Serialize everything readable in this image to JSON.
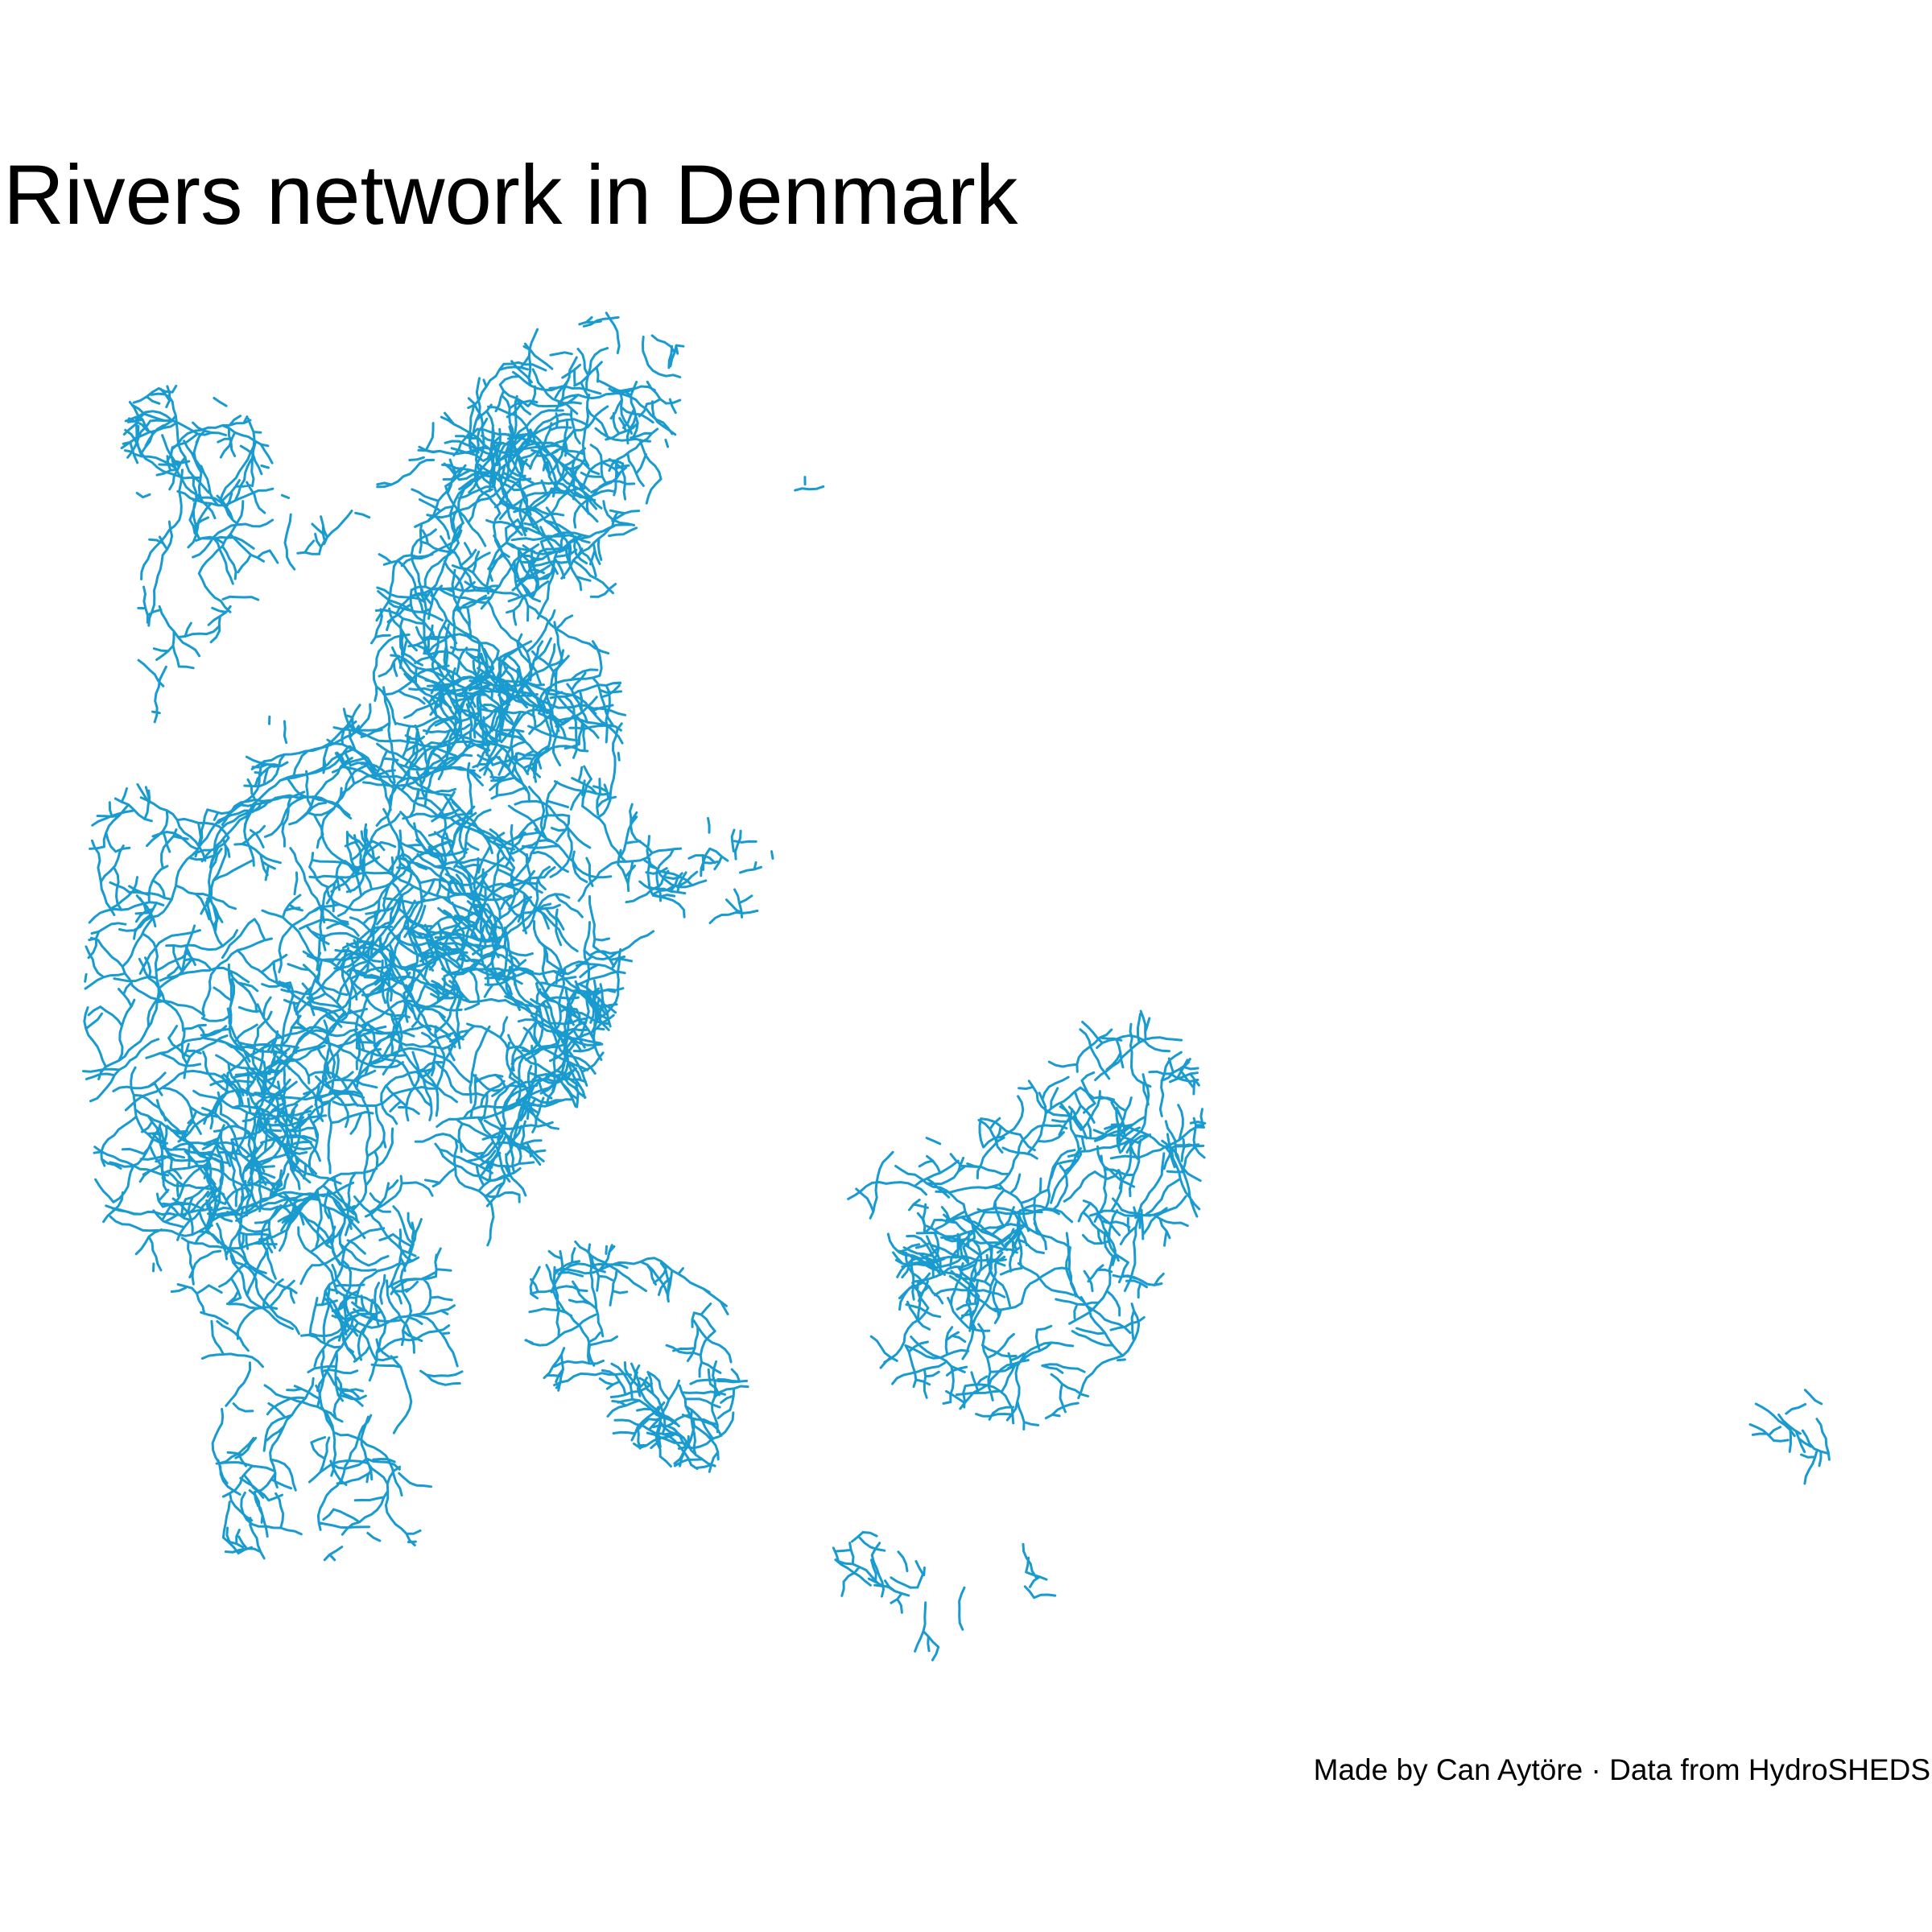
{
  "title": "Rivers network in Denmark",
  "caption": "Made by Can Aytöre · Data from HydroSHEDS",
  "colors": {
    "background": "#ffffff",
    "river": "#1a9bd0",
    "text": "#000000"
  }
}
